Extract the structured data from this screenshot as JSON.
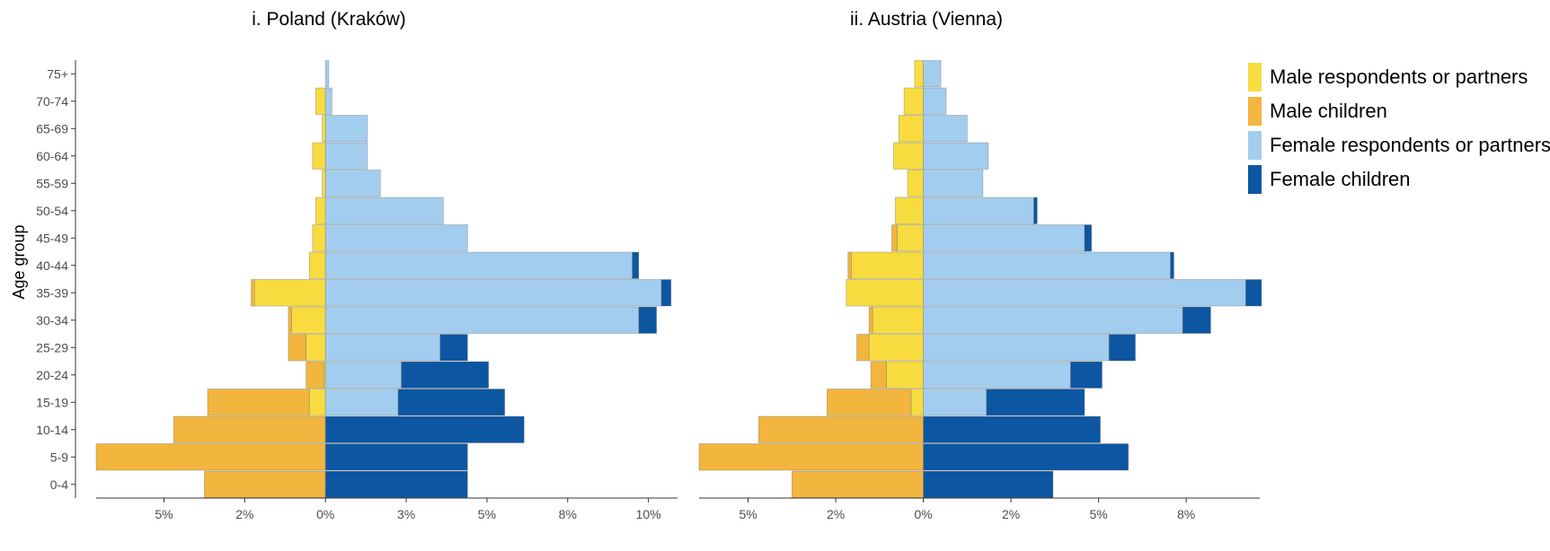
{
  "colors": {
    "male_resp": "#F8DC3F",
    "male_child": "#F2B53D",
    "female_resp": "#A3CDEE",
    "female_child": "#0C56A2"
  },
  "chart_data": {
    "type": "bar",
    "ylabel": "Age group",
    "categories": [
      "0-4",
      "5-9",
      "10-14",
      "15-19",
      "20-24",
      "25-29",
      "30-34",
      "35-39",
      "40-44",
      "45-49",
      "50-54",
      "55-59",
      "60-64",
      "65-69",
      "70-74",
      "75+"
    ],
    "legend": {
      "placement": "right",
      "entries": [
        {
          "key": "male_resp",
          "label": "Male respondents or partners"
        },
        {
          "key": "male_child",
          "label": "Male children"
        },
        {
          "key": "female_resp",
          "label": "Female respondents or partners"
        },
        {
          "key": "female_child",
          "label": "Female children"
        }
      ]
    },
    "panels": [
      {
        "title": "i. Poland (Kraków)",
        "xlim": [
          -7.1,
          10.9
        ],
        "xticks": [
          -5,
          -2.5,
          0,
          2.5,
          5,
          7.5,
          10
        ],
        "xtick_labels": [
          "5%",
          "2%",
          "0%",
          "3%",
          "5%",
          "8%",
          "10%"
        ],
        "series": [
          {
            "key": "male_resp",
            "side": "left",
            "values": [
              0,
              0,
              0,
              0.5,
              0.05,
              0.6,
              1.05,
              2.2,
              0.5,
              0.4,
              0.3,
              0.1,
              0.4,
              0.1,
              0.3,
              0
            ]
          },
          {
            "key": "male_child",
            "side": "left",
            "values": [
              3.75,
              7.1,
              4.7,
              3.15,
              0.55,
              0.55,
              0.1,
              0.1,
              0,
              0,
              0,
              0,
              0,
              0,
              0,
              0
            ]
          },
          {
            "key": "female_resp",
            "side": "right",
            "values": [
              0,
              0,
              0,
              2.25,
              2.35,
              3.55,
              9.7,
              10.4,
              9.5,
              4.4,
              3.65,
              1.7,
              1.3,
              1.3,
              0.2,
              0.1
            ]
          },
          {
            "key": "female_child",
            "side": "right",
            "values": [
              4.4,
              4.4,
              6.15,
              3.3,
              2.7,
              0.85,
              0.55,
              0.3,
              0.2,
              0,
              0,
              0,
              0,
              0,
              0,
              0
            ]
          }
        ]
      },
      {
        "title": "ii. Austria (Vienna)",
        "xlim": [
          -6.4,
          9.6
        ],
        "xticks": [
          -5,
          -2.5,
          0,
          2.5,
          5,
          7.5
        ],
        "xtick_labels": [
          "5%",
          "2%",
          "0%",
          "2%",
          "5%",
          "8%"
        ],
        "series": [
          {
            "key": "male_resp",
            "side": "left",
            "values": [
              0,
              0,
              0,
              0.35,
              1.05,
              1.55,
              1.45,
              2.2,
              2.05,
              0.75,
              0.8,
              0.45,
              0.85,
              0.7,
              0.55,
              0.25
            ]
          },
          {
            "key": "male_child",
            "side": "left",
            "values": [
              3.75,
              6.4,
              4.7,
              2.4,
              0.45,
              0.35,
              0.1,
              0,
              0.1,
              0.15,
              0,
              0,
              0,
              0,
              0,
              0
            ]
          },
          {
            "key": "female_resp",
            "side": "right",
            "values": [
              0,
              0,
              0,
              1.8,
              4.2,
              5.3,
              7.4,
              9.2,
              7.05,
              4.6,
              3.15,
              1.7,
              1.85,
              1.25,
              0.65,
              0.5
            ]
          },
          {
            "key": "female_child",
            "side": "right",
            "values": [
              3.7,
              5.85,
              5.05,
              2.8,
              0.9,
              0.75,
              0.8,
              0.45,
              0.1,
              0.2,
              0.1,
              0,
              0,
              0,
              0,
              0
            ]
          }
        ]
      }
    ]
  }
}
